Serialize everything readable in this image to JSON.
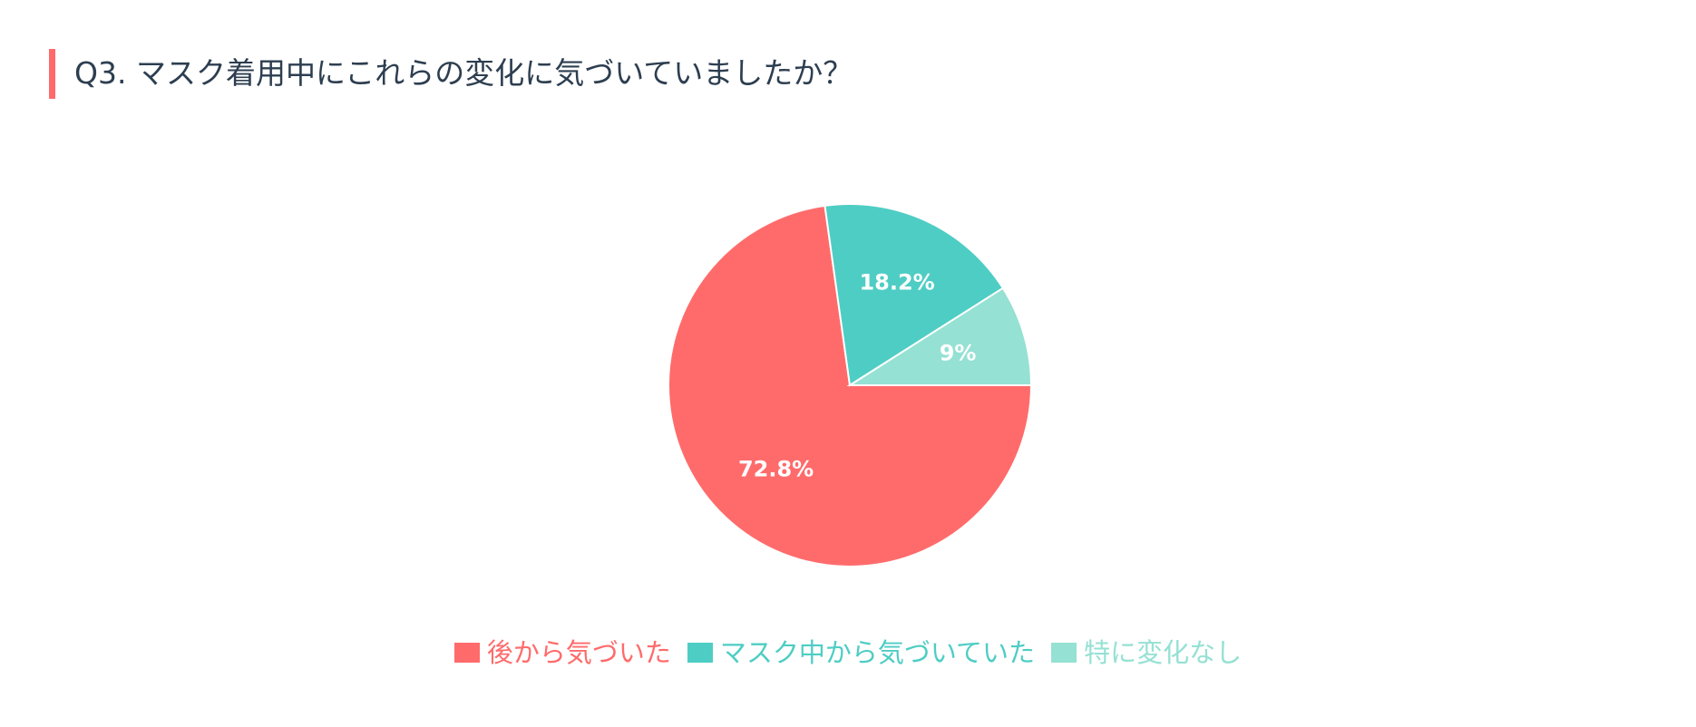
{
  "header": {
    "title": "Q3. マスク着用中にこれらの変化に気づいていましたか？",
    "accent_color": "#ff6b6b"
  },
  "chart_data": {
    "type": "pie",
    "title": "Q3. マスク着用中にこれらの変化に気づいていましたか？",
    "legend_position": "bottom",
    "slices": [
      {
        "label": "後から気づいた",
        "value": 72.8,
        "display": "72.8%",
        "color": "#ff6b6b"
      },
      {
        "label": "マスク中から気づいていた",
        "value": 18.2,
        "display": "18.2%",
        "color": "#4ecdc4"
      },
      {
        "label": "特に変化なし",
        "value": 9,
        "display": "9%",
        "color": "#95e1d3"
      }
    ]
  }
}
